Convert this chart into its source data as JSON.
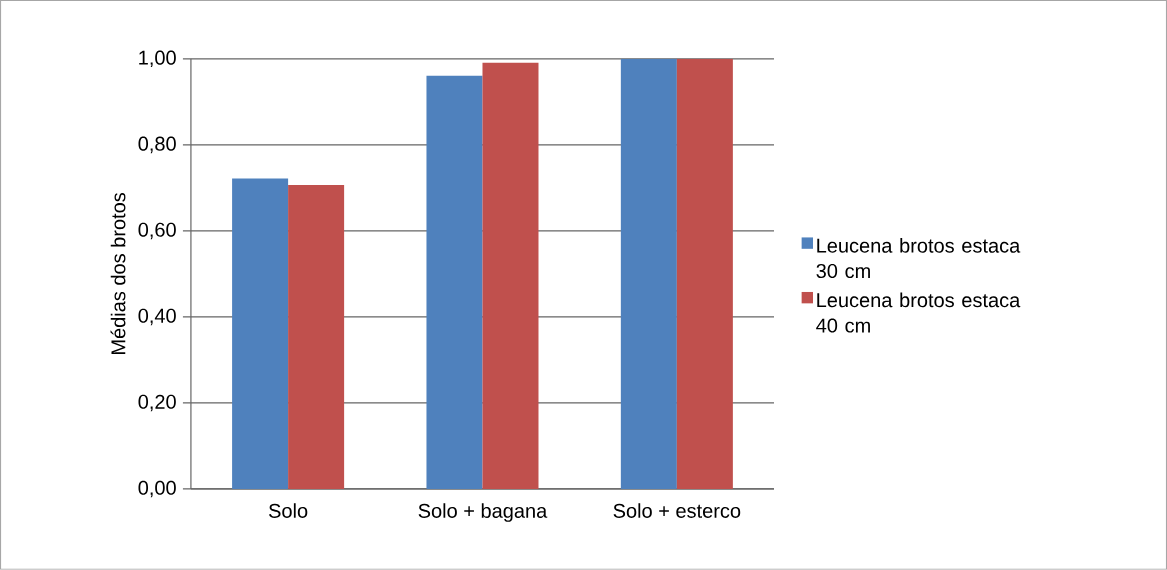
{
  "chart_data": {
    "type": "bar",
    "ylabel": "Médias dos brotos",
    "categories": [
      "Solo",
      "Solo + bagana",
      "Solo + esterco"
    ],
    "series": [
      {
        "name": "Leucena brotos estaca 30 cm",
        "color": "#4f81bd",
        "values": [
          0.722,
          0.961,
          1.0
        ]
      },
      {
        "name": "Leucena brotos estaca 40 cm",
        "color": "#c0504d",
        "values": [
          0.707,
          0.991,
          1.0
        ]
      }
    ],
    "ylim": [
      0,
      1
    ],
    "yticks": [
      {
        "value": 0,
        "label": "0,00"
      },
      {
        "value": 0.2,
        "label": "0,20"
      },
      {
        "value": 0.4,
        "label": "0,40"
      },
      {
        "value": 0.6,
        "label": "0,60"
      },
      {
        "value": 0.8,
        "label": "0,80"
      },
      {
        "value": 1,
        "label": "1,00"
      }
    ],
    "grid": "y",
    "legend": "right"
  }
}
